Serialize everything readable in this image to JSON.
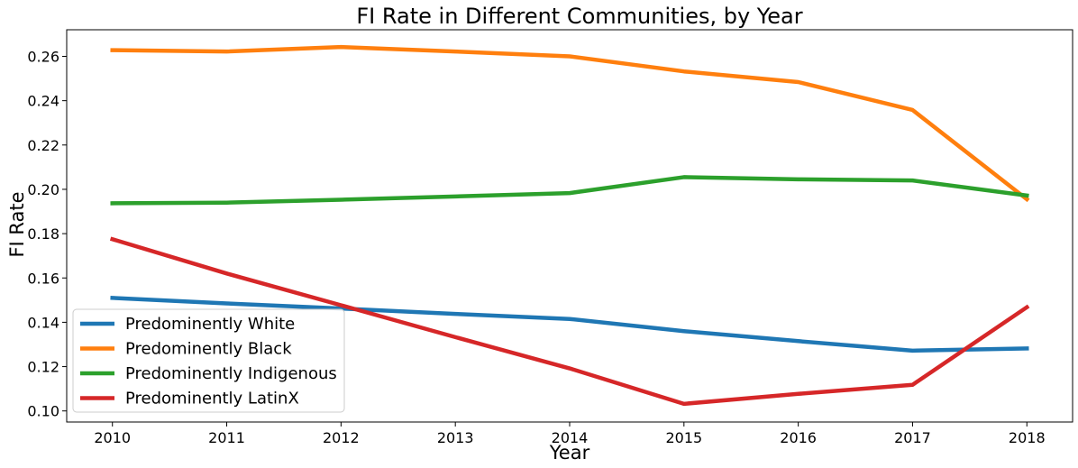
{
  "chart_data": {
    "type": "line",
    "title": "FI Rate in Different Communities, by Year",
    "xlabel": "Year",
    "ylabel": "FI Rate",
    "x": [
      "2010",
      "2011",
      "2012",
      "2013",
      "2014",
      "2015",
      "2016",
      "2017",
      "2018"
    ],
    "xlim": [
      2009.6,
      2018.4
    ],
    "ylim": [
      0.095,
      0.272
    ],
    "yticks": [
      "0.10",
      "0.12",
      "0.14",
      "0.16",
      "0.18",
      "0.20",
      "0.22",
      "0.24",
      "0.26"
    ],
    "grid": false,
    "legend": "bottom-left",
    "series": [
      {
        "name": "Predominently White",
        "color": "#1f77b4",
        "values": [
          0.151,
          0.1485,
          0.1462,
          0.1438,
          0.1415,
          0.136,
          0.1315,
          0.1272,
          0.1282
        ]
      },
      {
        "name": "Predominently Black",
        "color": "#ff7f0e",
        "values": [
          0.2628,
          0.2622,
          0.2642,
          0.2622,
          0.26,
          0.2532,
          0.2484,
          0.2358,
          0.1955
        ]
      },
      {
        "name": "Predominently Indigenous",
        "color": "#2ca02c",
        "values": [
          0.1937,
          0.194,
          0.1953,
          0.1968,
          0.1983,
          0.2055,
          0.2045,
          0.204,
          0.1972
        ]
      },
      {
        "name": "Predominently LatinX",
        "color": "#d62728",
        "values": [
          0.1775,
          0.162,
          0.1477,
          0.1333,
          0.1192,
          0.1032,
          0.1077,
          0.1118,
          0.1468
        ]
      }
    ]
  }
}
